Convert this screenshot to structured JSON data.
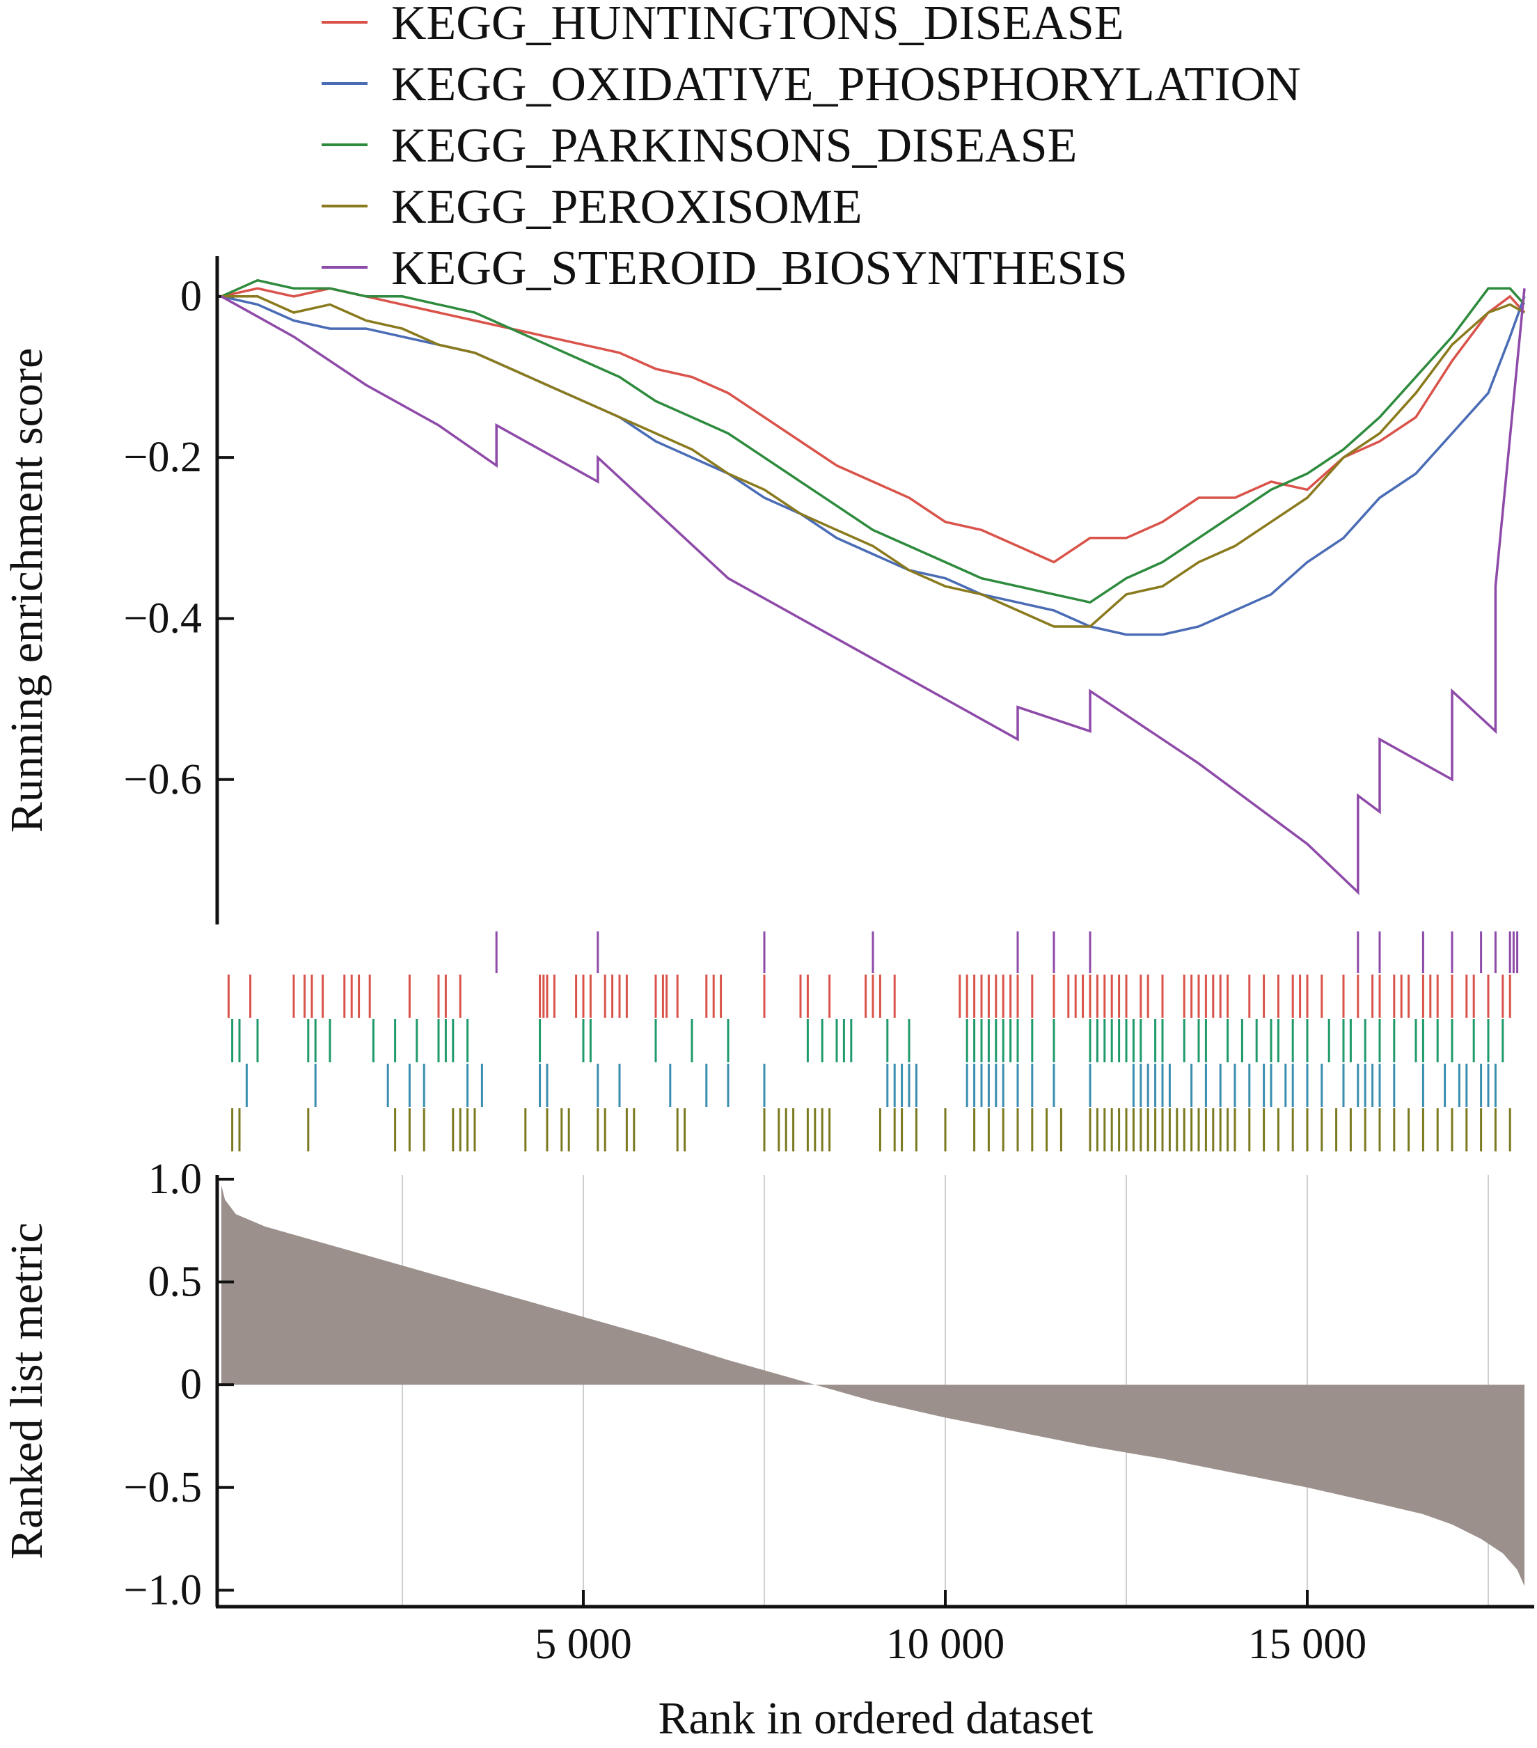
{
  "chart_data": {
    "type": "line",
    "legend_position": "top",
    "series": [
      {
        "name": "KEGG_HUNTINGTONS_DISEASE",
        "color": "#d9534a",
        "x": [
          0,
          500,
          1000,
          1500,
          2000,
          2500,
          3000,
          3500,
          4000,
          4500,
          5000,
          5500,
          6000,
          6500,
          7000,
          7500,
          8000,
          8500,
          9000,
          9500,
          10000,
          10500,
          11000,
          11500,
          12000,
          12500,
          13000,
          13500,
          14000,
          14500,
          15000,
          15500,
          16000,
          16500,
          17000,
          17500,
          17800,
          18000
        ],
        "y": [
          0,
          0.01,
          0.0,
          0.01,
          0.0,
          -0.01,
          -0.02,
          -0.03,
          -0.04,
          -0.05,
          -0.06,
          -0.07,
          -0.09,
          -0.1,
          -0.12,
          -0.15,
          -0.18,
          -0.21,
          -0.23,
          -0.25,
          -0.28,
          -0.29,
          -0.31,
          -0.33,
          -0.3,
          -0.3,
          -0.28,
          -0.25,
          -0.25,
          -0.23,
          -0.24,
          -0.2,
          -0.18,
          -0.15,
          -0.08,
          -0.02,
          0.0,
          -0.02
        ]
      },
      {
        "name": "KEGG_OXIDATIVE_PHOSPHORYLATION",
        "color": "#4a6cb5",
        "x": [
          0,
          500,
          1000,
          1500,
          2000,
          2500,
          3000,
          3500,
          4000,
          4500,
          5000,
          5500,
          6000,
          6500,
          7000,
          7500,
          8000,
          8500,
          9000,
          9500,
          10000,
          10500,
          11000,
          11500,
          12000,
          12500,
          13000,
          13500,
          14000,
          14500,
          15000,
          15500,
          16000,
          16500,
          17000,
          17500,
          17800,
          18000
        ],
        "y": [
          0,
          -0.01,
          -0.03,
          -0.04,
          -0.04,
          -0.05,
          -0.06,
          -0.07,
          -0.09,
          -0.11,
          -0.13,
          -0.15,
          -0.18,
          -0.2,
          -0.22,
          -0.25,
          -0.27,
          -0.3,
          -0.32,
          -0.34,
          -0.35,
          -0.37,
          -0.38,
          -0.39,
          -0.41,
          -0.42,
          -0.42,
          -0.41,
          -0.39,
          -0.37,
          -0.33,
          -0.3,
          -0.25,
          -0.22,
          -0.17,
          -0.12,
          -0.05,
          0.0
        ]
      },
      {
        "name": "KEGG_PARKINSONS_DISEASE",
        "color": "#2e8b3e",
        "x": [
          0,
          500,
          1000,
          1500,
          2000,
          2500,
          3000,
          3500,
          4000,
          4500,
          5000,
          5500,
          6000,
          6500,
          7000,
          7500,
          8000,
          8500,
          9000,
          9500,
          10000,
          10500,
          11000,
          11500,
          12000,
          12500,
          13000,
          13500,
          14000,
          14500,
          15000,
          15500,
          16000,
          16500,
          17000,
          17500,
          17800,
          18000
        ],
        "y": [
          0,
          0.02,
          0.01,
          0.01,
          0.0,
          0.0,
          -0.01,
          -0.02,
          -0.04,
          -0.06,
          -0.08,
          -0.1,
          -0.13,
          -0.15,
          -0.17,
          -0.2,
          -0.23,
          -0.26,
          -0.29,
          -0.31,
          -0.33,
          -0.35,
          -0.36,
          -0.37,
          -0.38,
          -0.35,
          -0.33,
          -0.3,
          -0.27,
          -0.24,
          -0.22,
          -0.19,
          -0.15,
          -0.1,
          -0.05,
          0.01,
          0.01,
          -0.01
        ]
      },
      {
        "name": "KEGG_PEROXISOME",
        "color": "#8a7a1e",
        "x": [
          0,
          500,
          1000,
          1500,
          2000,
          2500,
          3000,
          3500,
          4000,
          4500,
          5000,
          5500,
          6000,
          6500,
          7000,
          7500,
          8000,
          8500,
          9000,
          9500,
          10000,
          10500,
          11000,
          11500,
          12000,
          12500,
          13000,
          13500,
          14000,
          14500,
          15000,
          15500,
          16000,
          16500,
          17000,
          17500,
          17800,
          18000
        ],
        "y": [
          0,
          0.0,
          -0.02,
          -0.01,
          -0.03,
          -0.04,
          -0.06,
          -0.07,
          -0.09,
          -0.11,
          -0.13,
          -0.15,
          -0.17,
          -0.19,
          -0.22,
          -0.24,
          -0.27,
          -0.29,
          -0.31,
          -0.34,
          -0.36,
          -0.37,
          -0.39,
          -0.41,
          -0.41,
          -0.37,
          -0.36,
          -0.33,
          -0.31,
          -0.28,
          -0.25,
          -0.2,
          -0.17,
          -0.12,
          -0.06,
          -0.02,
          -0.01,
          -0.02
        ]
      },
      {
        "name": "KEGG_STEROID_BIOSYNTHESIS",
        "color": "#8e4aa8",
        "x": [
          0,
          1000,
          2000,
          3000,
          3800,
          3800,
          5200,
          5200,
          7000,
          9000,
          11000,
          11000,
          12000,
          12000,
          13500,
          15000,
          15700,
          15700,
          16000,
          16000,
          17000,
          17000,
          17600,
          17600,
          18000
        ],
        "y": [
          0,
          -0.05,
          -0.11,
          -0.16,
          -0.21,
          -0.16,
          -0.23,
          -0.2,
          -0.35,
          -0.45,
          -0.55,
          -0.51,
          -0.54,
          -0.49,
          -0.58,
          -0.68,
          -0.74,
          -0.62,
          -0.64,
          -0.55,
          -0.6,
          -0.49,
          -0.54,
          -0.36,
          0.01
        ]
      }
    ],
    "es_panel": {
      "ylabel": "Running enrichment score",
      "ylim": [
        -0.78,
        0.05
      ],
      "yticks": [
        0,
        -0.2,
        -0.4,
        -0.6
      ],
      "ytick_labels": [
        "0",
        "−0.2",
        "−0.4",
        "−0.6"
      ]
    },
    "hit_rows": [
      {
        "series": "KEGG_STEROID_BIOSYNTHESIS",
        "color": "#8e4aa8",
        "positions": [
          3800,
          5200,
          7500,
          9000,
          11000,
          11500,
          12000,
          15700,
          16000,
          16600,
          17000,
          17400,
          17600,
          17800,
          17850,
          17900
        ]
      },
      {
        "series": "KEGG_HUNTINGTONS_DISEASE",
        "color": "#d9534a",
        "positions": [
          100,
          400,
          1000,
          1150,
          1250,
          1400,
          1700,
          1800,
          1900,
          2050,
          2600,
          3000,
          3100,
          3300,
          4400,
          4450,
          4500,
          4600,
          4900,
          5000,
          5100,
          5300,
          5400,
          5500,
          5600,
          6000,
          6100,
          6150,
          6300,
          6700,
          6800,
          6900,
          7500,
          8000,
          8100,
          8400,
          8900,
          9000,
          9100,
          9300,
          10200,
          10300,
          10400,
          10500,
          10600,
          10700,
          10800,
          10900,
          11000,
          11200,
          11500,
          11700,
          11800,
          11900,
          12000,
          12100,
          12200,
          12300,
          12400,
          12500,
          12700,
          12800,
          13000,
          13300,
          13400,
          13500,
          13600,
          13700,
          13800,
          13900,
          14200,
          14400,
          14600,
          14800,
          14900,
          15000,
          15200,
          15500,
          15700,
          15900,
          16000,
          16200,
          16300,
          16400,
          16600,
          16700,
          16800,
          17000,
          17200,
          17300,
          17500,
          17700,
          17800
        ]
      },
      {
        "series": "KEGG_PARKINSONS_DISEASE",
        "color": "#1f9a6a",
        "positions": [
          150,
          250,
          500,
          1200,
          1300,
          1500,
          2100,
          2400,
          2700,
          3000,
          3100,
          3200,
          3400,
          4400,
          5000,
          5100,
          6000,
          6500,
          7000,
          8100,
          8300,
          8500,
          8600,
          8700,
          9200,
          9500,
          10300,
          10400,
          10500,
          10600,
          10700,
          10800,
          10900,
          11000,
          11200,
          11500,
          12000,
          12100,
          12200,
          12300,
          12400,
          12500,
          12600,
          12700,
          12900,
          13000,
          13300,
          13500,
          13600,
          13900,
          14100,
          14300,
          14500,
          14600,
          14800,
          15000,
          15300,
          15500,
          15600,
          15800,
          16000,
          16200,
          16500,
          16600,
          16800,
          17000,
          17300,
          17500,
          17700
        ]
      },
      {
        "series": "KEGG_OXIDATIVE_PHOSPHORYLATION",
        "color": "#3a8eb0",
        "positions": [
          350,
          1300,
          2300,
          2600,
          2800,
          3400,
          3600,
          4400,
          4500,
          5200,
          5500,
          6200,
          6700,
          7000,
          7500,
          9200,
          9300,
          9400,
          9500,
          9600,
          10300,
          10400,
          10500,
          10600,
          10700,
          10800,
          11000,
          11200,
          11500,
          12000,
          12600,
          12700,
          12800,
          12900,
          13000,
          13100,
          13400,
          13600,
          13800,
          14000,
          14200,
          14400,
          14500,
          14700,
          14800,
          15000,
          15200,
          15500,
          15700,
          15800,
          15900,
          16000,
          16200,
          16600,
          16900,
          17100,
          17200,
          17400,
          17500,
          17600
        ]
      },
      {
        "series": "KEGG_PEROXISOME",
        "color": "#7a7a20",
        "positions": [
          150,
          250,
          1200,
          2400,
          2600,
          2800,
          3200,
          3300,
          3400,
          3500,
          4200,
          4500,
          4700,
          4800,
          5200,
          5300,
          5600,
          5700,
          6300,
          6400,
          7500,
          7700,
          7800,
          7900,
          8100,
          8200,
          8300,
          8400,
          9100,
          9300,
          9400,
          9600,
          10000,
          10400,
          10600,
          10800,
          11000,
          11200,
          11400,
          11600,
          12000,
          12100,
          12200,
          12300,
          12400,
          12500,
          12600,
          12700,
          12800,
          12900,
          13000,
          13100,
          13200,
          13300,
          13400,
          13500,
          13600,
          13700,
          13800,
          13900,
          14000,
          14200,
          14400,
          14600,
          14800,
          15000,
          15200,
          15400,
          15600,
          15800,
          16000,
          16200,
          16400,
          16600,
          16800,
          17000,
          17200,
          17400,
          17600,
          17800
        ]
      }
    ],
    "metric_panel": {
      "ylabel": "Ranked list metric",
      "ylim": [
        -1.08,
        1.02
      ],
      "yticks": [
        1.0,
        0.5,
        0,
        -0.5,
        -1.0
      ],
      "ytick_labels": [
        "1.0",
        "0.5",
        "0",
        "−0.5",
        "−1.0"
      ],
      "fill_color": "#9b908c",
      "x": [
        0,
        50,
        200,
        600,
        1000,
        1500,
        2000,
        3000,
        4000,
        5000,
        6000,
        7000,
        8000,
        8200,
        9000,
        10000,
        11000,
        12000,
        13000,
        14000,
        15000,
        16000,
        16600,
        17000,
        17400,
        17700,
        17900,
        18000
      ],
      "y": [
        0.97,
        0.9,
        0.83,
        0.77,
        0.73,
        0.68,
        0.63,
        0.53,
        0.43,
        0.33,
        0.23,
        0.12,
        0.02,
        0.0,
        -0.08,
        -0.16,
        -0.23,
        -0.3,
        -0.36,
        -0.43,
        -0.5,
        -0.58,
        -0.63,
        -0.68,
        -0.75,
        -0.82,
        -0.9,
        -0.98
      ]
    },
    "xlabel": "Rank in ordered dataset",
    "xlim": [
      0,
      18000
    ],
    "xticks": [
      5000,
      10000,
      15000
    ],
    "xtick_labels": [
      "5 000",
      "10 000",
      "15 000"
    ],
    "x_gridlines": [
      2500,
      5000,
      7500,
      10000,
      12500,
      15000,
      17500
    ]
  }
}
